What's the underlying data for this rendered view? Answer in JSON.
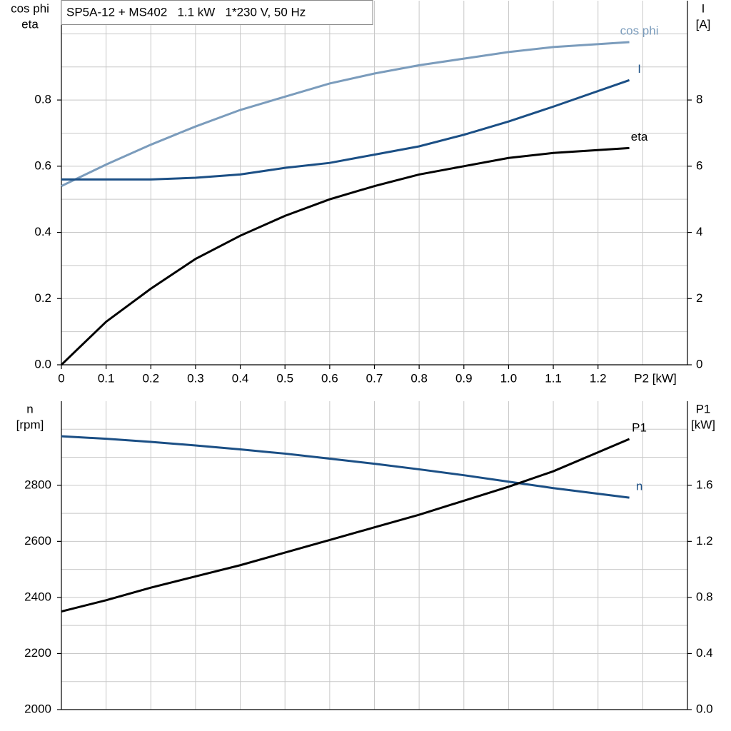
{
  "chart_data": [
    {
      "type": "line",
      "title": "SP5A-12 + MS402   1.1 kW   1*230 V, 50 Hz",
      "xlabel": "P2 [kW]",
      "ylabel": [
        "cos phi",
        "eta"
      ],
      "y2label": [
        "I",
        "[A]"
      ],
      "x": [
        0,
        0.1,
        0.2,
        0.3,
        0.4,
        0.5,
        0.6,
        0.7,
        0.8,
        0.9,
        1.0,
        1.1,
        1.27
      ],
      "xlim": [
        0,
        1.4
      ],
      "xticks": [
        0,
        0.1,
        0.2,
        0.3,
        0.4,
        0.5,
        0.6,
        0.7,
        0.8,
        0.9,
        {
          "value": 1,
          "label": "1.0"
        },
        1.1,
        1.2
      ],
      "x_minor_ticks": [
        1.3
      ],
      "ylim": [
        0,
        1.1
      ],
      "yticks": [
        {
          "value": 0,
          "label": "0.0"
        },
        0.2,
        0.4,
        0.6,
        0.8
      ],
      "y_minor_ticks": [
        0.1,
        0.3,
        0.5,
        0.7,
        0.9,
        1.0
      ],
      "y2lim": [
        0,
        11
      ],
      "y2ticks": [
        0,
        2,
        4,
        6,
        8
      ],
      "grid": true,
      "series": [
        {
          "name": "cos phi",
          "color": "#7b9cbc",
          "values": [
            0.54,
            0.605,
            0.665,
            0.72,
            0.77,
            0.81,
            0.85,
            0.88,
            0.905,
            0.925,
            0.945,
            0.96,
            0.975
          ]
        },
        {
          "name": "I",
          "color": "#1b4f85",
          "axis": "y2",
          "values": [
            5.6,
            5.6,
            5.6,
            5.65,
            5.75,
            5.95,
            6.1,
            6.35,
            6.6,
            6.95,
            7.35,
            7.8,
            8.6
          ]
        },
        {
          "name": "eta",
          "color": "#000000",
          "values": [
            0,
            0.13,
            0.23,
            0.32,
            0.39,
            0.45,
            0.5,
            0.54,
            0.575,
            0.6,
            0.625,
            0.64,
            0.655
          ]
        }
      ]
    },
    {
      "type": "line",
      "ylabel": [
        "n",
        "[rpm]"
      ],
      "y2label": [
        "P1",
        "[kW]"
      ],
      "x": [
        0,
        0.1,
        0.2,
        0.3,
        0.4,
        0.5,
        0.6,
        0.7,
        0.8,
        0.9,
        1.0,
        1.1,
        1.27
      ],
      "xlim": [
        0,
        1.4
      ],
      "x_minor_ticks": [
        0.1,
        0.2,
        0.3,
        0.4,
        0.5,
        0.6,
        0.7,
        0.8,
        0.9,
        1,
        1.1,
        1.2,
        1.3
      ],
      "ylim": [
        2000,
        3100
      ],
      "yticks": [
        2000,
        2200,
        2400,
        2600,
        2800
      ],
      "y_minor_ticks": [
        2100,
        2300,
        2500,
        2700,
        2900,
        3000
      ],
      "y2lim": [
        0,
        2.2
      ],
      "y2ticks": [
        {
          "value": 0,
          "label": "0.0"
        },
        0.4,
        0.8,
        1.2,
        1.6
      ],
      "grid": true,
      "series": [
        {
          "name": "n",
          "color": "#1b4f85",
          "values": [
            2975,
            2966,
            2955,
            2942,
            2928,
            2913,
            2895,
            2877,
            2857,
            2836,
            2813,
            2790,
            2756
          ]
        },
        {
          "name": "P1",
          "color": "#000000",
          "axis": "y2",
          "values": [
            0.7,
            0.78,
            0.87,
            0.95,
            1.03,
            1.12,
            1.21,
            1.3,
            1.39,
            1.49,
            1.59,
            1.7,
            1.93
          ]
        }
      ]
    }
  ]
}
